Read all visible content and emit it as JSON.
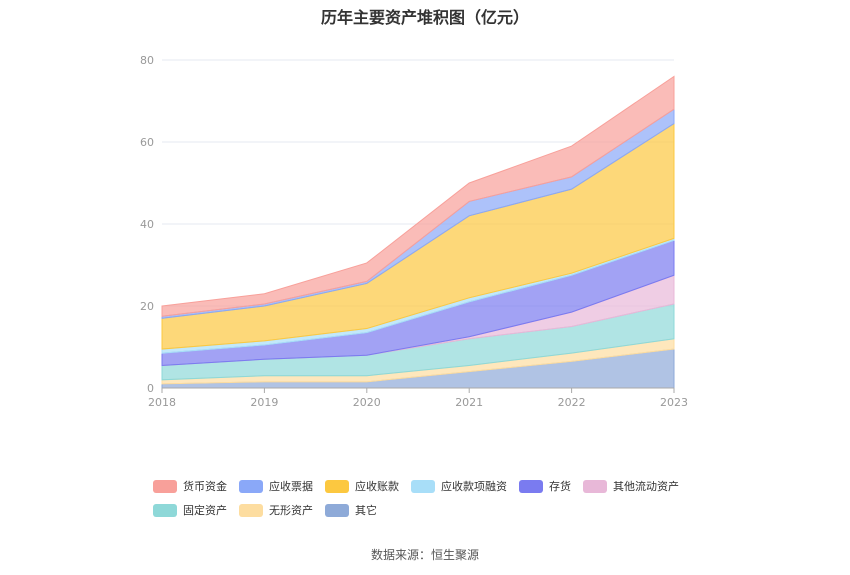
{
  "title": "历年主要资产堆积图（亿元）",
  "source": "数据来源：恒生聚源",
  "chart_data": {
    "type": "area",
    "stacked": true,
    "title": "历年主要资产堆积图（亿元）",
    "x": [
      "2018",
      "2019",
      "2020",
      "2021",
      "2022",
      "2023"
    ],
    "ylim": [
      0,
      80
    ],
    "yticks": [
      "0",
      "20",
      "40",
      "60",
      "80"
    ],
    "grid": true,
    "legend_position": "bottom",
    "series": [
      {
        "name": "其它",
        "color": "#8eaad8",
        "values": [
          1.0,
          1.5,
          1.5,
          4.0,
          6.5,
          9.5
        ]
      },
      {
        "name": "无形资产",
        "color": "#fddda0",
        "values": [
          1.0,
          1.5,
          1.5,
          1.5,
          2.0,
          2.5
        ]
      },
      {
        "name": "固定资产",
        "color": "#8ed8d8",
        "values": [
          3.5,
          4.0,
          5.0,
          6.5,
          6.5,
          8.5
        ]
      },
      {
        "name": "其他流动资产",
        "color": "#e8b8d8",
        "values": [
          0.0,
          0.0,
          0.0,
          0.5,
          3.5,
          7.0
        ]
      },
      {
        "name": "存货",
        "color": "#7a7bf0",
        "values": [
          3.0,
          3.5,
          5.5,
          8.5,
          9.0,
          8.5
        ]
      },
      {
        "name": "应收款项融资",
        "color": "#a8def8",
        "values": [
          1.0,
          1.0,
          1.0,
          1.0,
          0.5,
          0.5
        ]
      },
      {
        "name": "应收账款",
        "color": "#fcc840",
        "values": [
          7.5,
          8.5,
          11.0,
          20.0,
          20.5,
          28.0
        ]
      },
      {
        "name": "应收票据",
        "color": "#8aa8f8",
        "values": [
          0.5,
          0.5,
          0.5,
          3.5,
          3.0,
          3.5
        ]
      },
      {
        "name": "货币资金",
        "color": "#f8a09a",
        "values": [
          2.5,
          2.5,
          4.5,
          4.5,
          7.5,
          8.0
        ]
      }
    ]
  },
  "legend": {
    "row1": [
      "货币资金",
      "应收票据",
      "应收账款",
      "应收款项融资",
      "存货",
      "其他流动资产"
    ],
    "row2": [
      "固定资产",
      "无形资产",
      "其它"
    ]
  },
  "colors": {
    "货币资金": "#f8a09a",
    "应收票据": "#8aa8f8",
    "应收账款": "#fcc840",
    "应收款项融资": "#a8def8",
    "存货": "#7a7bf0",
    "其他流动资产": "#e8b8d8",
    "固定资产": "#8ed8d8",
    "无形资产": "#fddda0",
    "其它": "#8eaad8"
  }
}
